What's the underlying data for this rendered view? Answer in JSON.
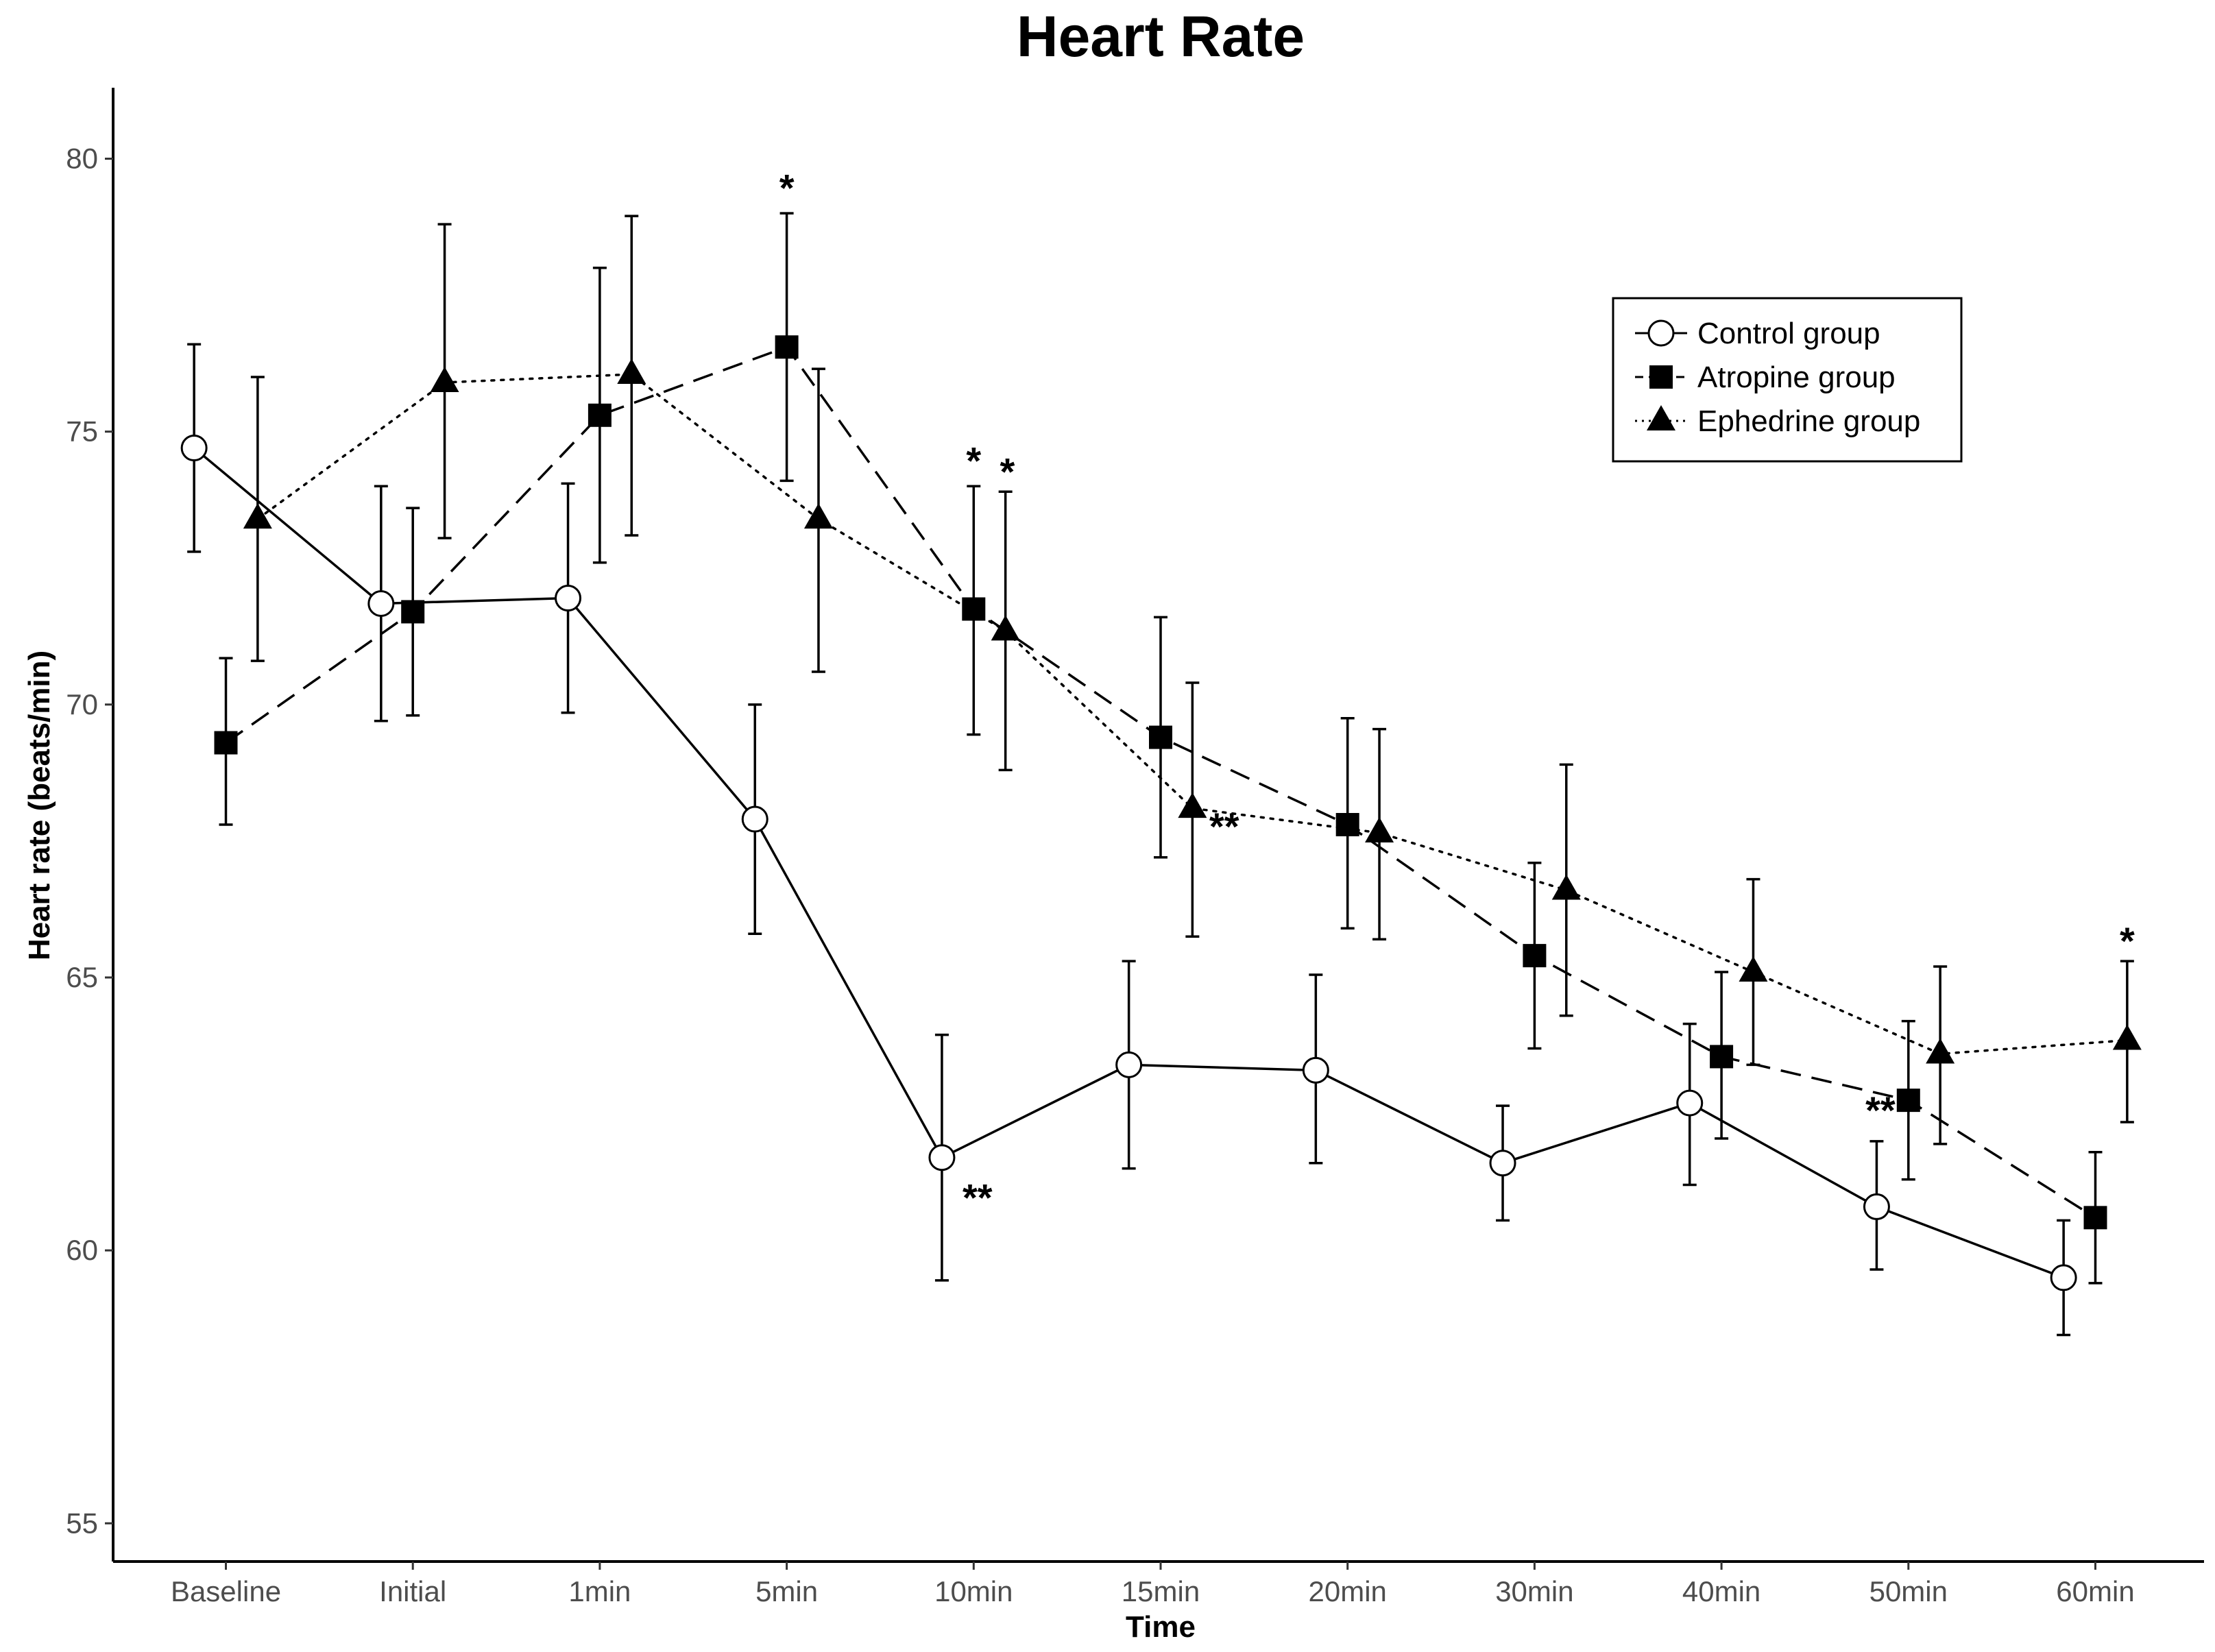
{
  "chart_data": {
    "type": "line",
    "title": "Heart Rate",
    "xlabel": "Time",
    "ylabel": "Heart rate (beats/min)",
    "ylim": [
      54.3,
      81.3
    ],
    "yticks": [
      55,
      60,
      65,
      70,
      75,
      80
    ],
    "categories": [
      "Baseline",
      "Initial",
      "1min",
      "5min",
      "10min",
      "15min",
      "20min",
      "30min",
      "40min",
      "50min",
      "60min"
    ],
    "legend_position": "top-right",
    "series": [
      {
        "name": "Control group",
        "marker": "open-circle",
        "linestyle": "solid",
        "dodge": -0.17,
        "values": [
          74.7,
          71.85,
          71.95,
          67.9,
          61.7,
          63.4,
          63.3,
          61.6,
          62.7,
          60.8,
          59.5
        ],
        "lower": [
          72.8,
          69.7,
          69.85,
          65.8,
          59.45,
          61.5,
          61.6,
          60.55,
          61.2,
          59.65,
          58.45
        ],
        "upper": [
          76.6,
          74.0,
          74.05,
          70.0,
          63.95,
          65.3,
          65.05,
          62.65,
          64.15,
          62.0,
          60.55
        ]
      },
      {
        "name": "Atropine group",
        "marker": "filled-square",
        "linestyle": "dashed",
        "dodge": 0,
        "values": [
          69.3,
          71.7,
          75.3,
          76.55,
          71.75,
          69.4,
          67.8,
          65.4,
          63.55,
          62.75,
          60.6
        ],
        "lower": [
          67.8,
          69.8,
          72.6,
          74.1,
          69.45,
          67.2,
          65.9,
          63.7,
          62.05,
          61.3,
          59.4
        ],
        "upper": [
          70.85,
          73.6,
          78.0,
          79.0,
          74.0,
          71.6,
          69.75,
          67.1,
          65.1,
          64.2,
          61.8
        ]
      },
      {
        "name": "Ephedrine group",
        "marker": "filled-triangle",
        "linestyle": "dotted",
        "dodge": 0.17,
        "values": [
          73.4,
          75.9,
          76.05,
          73.4,
          71.35,
          68.1,
          67.65,
          66.6,
          65.1,
          63.6,
          63.85
        ],
        "lower": [
          70.8,
          73.05,
          73.1,
          70.6,
          68.8,
          65.75,
          65.7,
          64.3,
          63.4,
          61.95,
          62.35
        ],
        "upper": [
          76.0,
          78.8,
          78.95,
          76.15,
          73.9,
          70.4,
          69.55,
          68.9,
          66.8,
          65.2,
          65.3
        ]
      }
    ],
    "annotations": [
      {
        "text": "*",
        "category": "5min",
        "x_offset": 0.0,
        "y": 79.5
      },
      {
        "text": "*",
        "category": "10min",
        "x_offset": 0.0,
        "y": 74.5
      },
      {
        "text": "*",
        "category": "10min",
        "x_offset": 0.18,
        "y": 74.3
      },
      {
        "text": "**",
        "category": "10min",
        "x_offset": 0.02,
        "y": 61.0
      },
      {
        "text": "**",
        "category": "15min",
        "x_offset": 0.34,
        "y": 67.8
      },
      {
        "text": "**",
        "category": "50min",
        "x_offset": -0.15,
        "y": 62.6
      },
      {
        "text": "*",
        "category": "60min",
        "x_offset": 0.17,
        "y": 65.7
      }
    ]
  }
}
